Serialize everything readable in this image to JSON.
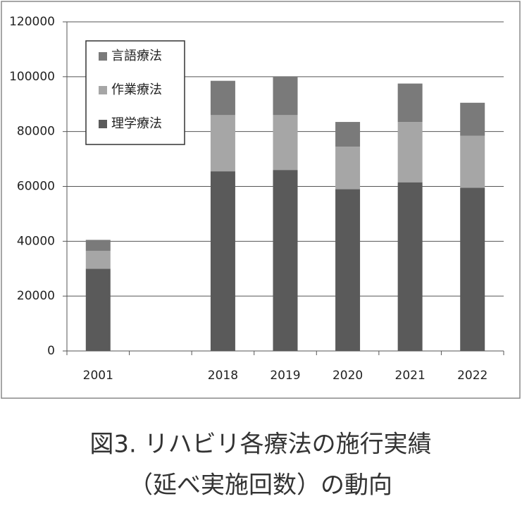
{
  "chart_data": {
    "type": "stacked_bar",
    "title": "図3. リハビリ各療法の施行実績",
    "subtitle": "（延べ実施回数）の動向",
    "categories": [
      "2001",
      null,
      "2018",
      "2019",
      "2020",
      "2021",
      "2022"
    ],
    "series": [
      {
        "name": "理学療法",
        "color": "#5a5a5a",
        "values": [
          30000,
          null,
          65500,
          66000,
          59000,
          61500,
          59500
        ]
      },
      {
        "name": "作業療法",
        "color": "#a6a6a6",
        "values": [
          6500,
          null,
          20500,
          20000,
          15500,
          22000,
          19000
        ]
      },
      {
        "name": "言語療法",
        "color": "#7a7a7a",
        "values": [
          4000,
          null,
          12500,
          14000,
          9000,
          14000,
          12000
        ]
      }
    ],
    "ylim": [
      0,
      120000
    ],
    "yticks": [
      0,
      20000,
      40000,
      60000,
      80000,
      100000,
      120000
    ],
    "grid": true
  }
}
